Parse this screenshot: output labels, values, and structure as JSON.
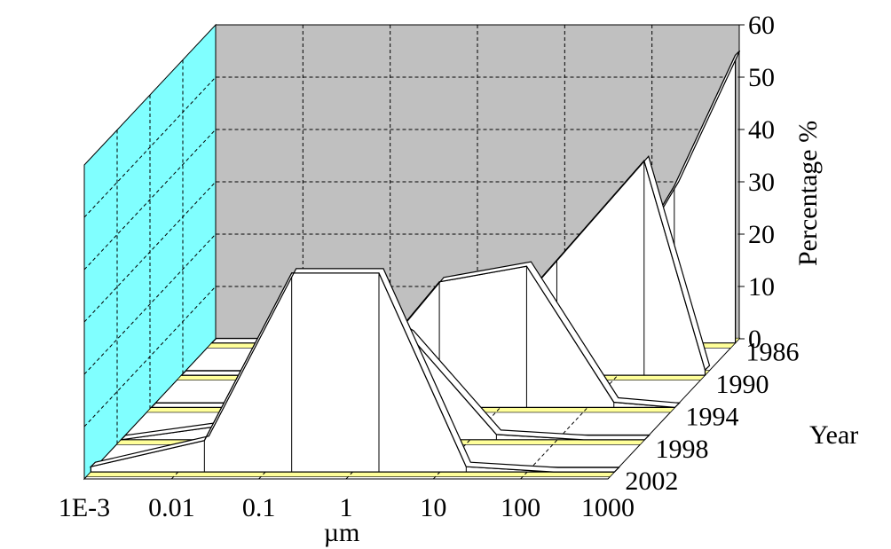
{
  "chart_data": {
    "type": "area",
    "projection": "3d-waterfall",
    "xlabel": "µm",
    "ylabel": "Year",
    "zlabel": "Percentage %",
    "x_scale": "log",
    "x_ticks": [
      "1E-3",
      "0.01",
      "0.1",
      "1",
      "10",
      "100",
      "1000"
    ],
    "x": [
      0.001,
      0.02,
      0.2,
      2,
      20,
      200,
      1000
    ],
    "y_ticks": [
      "1986",
      "1990",
      "1994",
      "1998",
      "2002"
    ],
    "z_ticks": [
      "0",
      "10",
      "20",
      "30",
      "40",
      "50",
      "60"
    ],
    "zlim": [
      0,
      60
    ],
    "grid": true,
    "colors": {
      "back_wall": "#c0c0c0",
      "side_wall": "#80ffff",
      "floor": "#ffff99",
      "ribbon": "#ffffff",
      "edge": "#000000"
    },
    "series": [
      {
        "name": "1986",
        "values": [
          0,
          0,
          0,
          0,
          2,
          30,
          55
        ]
      },
      {
        "name": "1990",
        "values": [
          0,
          0,
          0,
          3,
          22,
          41,
          1
        ]
      },
      {
        "name": "1994",
        "values": [
          0,
          0,
          4,
          24,
          27,
          1,
          0
        ]
      },
      {
        "name": "1998",
        "values": [
          0,
          3,
          30,
          20,
          1,
          0,
          0
        ]
      },
      {
        "name": "2002",
        "values": [
          1,
          6,
          38,
          38,
          1,
          0,
          0
        ]
      }
    ]
  }
}
